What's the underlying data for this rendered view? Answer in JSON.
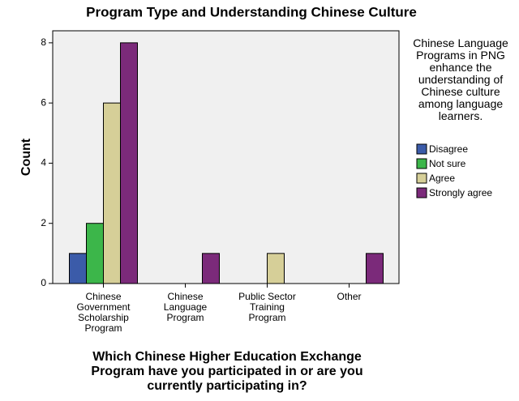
{
  "chart_data": {
    "type": "bar",
    "title": "Program Type and Understanding Chinese Culture",
    "x_label": "Which Chinese Higher Education Exchange Program have you participated in or are you currently participating in?",
    "y_label": "Count",
    "legend_title": "Chinese Language Programs in PNG enhance the understanding of Chinese culture among language learners.",
    "categories": [
      "Chinese Government Scholarship Program",
      "Chinese Language Program",
      "Public Sector Training Program",
      "Other"
    ],
    "series": [
      {
        "name": "Disagree",
        "color": "#3b5ba9",
        "values": [
          1,
          0,
          0,
          0
        ]
      },
      {
        "name": "Not sure",
        "color": "#3cb64a",
        "values": [
          2,
          0,
          0,
          0
        ]
      },
      {
        "name": "Agree",
        "color": "#d6cf98",
        "values": [
          6,
          0,
          1,
          0
        ]
      },
      {
        "name": "Strongly agree",
        "color": "#7b2a7a",
        "values": [
          8,
          1,
          0,
          1
        ]
      }
    ],
    "ylim": [
      0,
      8.4
    ],
    "yticks": [
      0,
      2,
      4,
      6,
      8
    ],
    "legend": "right"
  }
}
